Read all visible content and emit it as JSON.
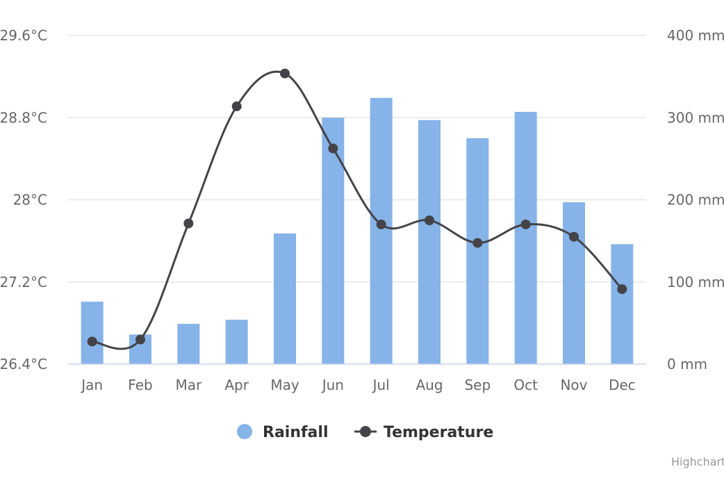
{
  "chart_data": {
    "type": "bar",
    "title": "",
    "categories": [
      "Jan",
      "Feb",
      "Mar",
      "Apr",
      "May",
      "Jun",
      "Jul",
      "Aug",
      "Sep",
      "Oct",
      "Nov",
      "Dec"
    ],
    "series": [
      {
        "name": "Rainfall",
        "type": "column",
        "axis": "right",
        "unit": "mm",
        "color": "#86b3e8",
        "values": [
          76,
          36,
          49,
          54,
          159,
          300,
          324,
          297,
          275,
          307,
          197,
          146
        ]
      },
      {
        "name": "Temperature",
        "type": "spline",
        "axis": "left",
        "unit": "°C",
        "color": "#434348",
        "values": [
          26.62,
          26.64,
          27.77,
          28.91,
          29.23,
          28.5,
          27.76,
          27.8,
          27.58,
          27.76,
          27.64,
          27.13
        ]
      }
    ],
    "y_left": {
      "min": 26.4,
      "max": 29.6,
      "ticks": [
        29.6,
        28.8,
        28,
        27.2,
        26.4
      ],
      "tick_labels": [
        "29.6°C",
        "28.8°C",
        "28°C",
        "27.2°C",
        "26.4°C"
      ]
    },
    "y_right": {
      "min": 0,
      "max": 400,
      "ticks": [
        400,
        300,
        200,
        100,
        0
      ],
      "tick_labels": [
        "400 mm",
        "300 mm",
        "200 mm",
        "100 mm",
        "0 mm"
      ]
    },
    "grid": true,
    "legend_position": "bottom-center",
    "credits": "Highcharts.com"
  }
}
